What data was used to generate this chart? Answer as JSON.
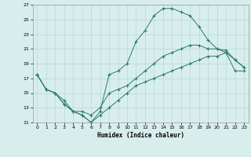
{
  "xlabel": "Humidex (Indice chaleur)",
  "xlim": [
    -0.5,
    23.5
  ],
  "ylim": [
    11,
    27
  ],
  "xticks": [
    0,
    1,
    2,
    3,
    4,
    5,
    6,
    7,
    8,
    9,
    10,
    11,
    12,
    13,
    14,
    15,
    16,
    17,
    18,
    19,
    20,
    21,
    22,
    23
  ],
  "yticks": [
    11,
    13,
    15,
    17,
    19,
    21,
    23,
    25,
    27
  ],
  "line_color": "#2a7a6a",
  "bg_color": "#d8eeed",
  "grid_color": "#b8d8d5",
  "line1_x": [
    0,
    1,
    2,
    3,
    4,
    5,
    6,
    7,
    8,
    9,
    10,
    11,
    12,
    13,
    14,
    15,
    16,
    17,
    18,
    19,
    20,
    21,
    22,
    23
  ],
  "line1_y": [
    17.5,
    15.5,
    15.0,
    14.0,
    12.5,
    12.0,
    11.0,
    12.5,
    17.5,
    18.0,
    19.0,
    22.0,
    23.5,
    25.5,
    26.5,
    26.5,
    26.0,
    25.5,
    24.0,
    22.2,
    21.0,
    20.5,
    19.5,
    18.5
  ],
  "line2_x": [
    0,
    1,
    2,
    3,
    4,
    5,
    6,
    7,
    8,
    9,
    10,
    11,
    12,
    13,
    14,
    15,
    16,
    17,
    18,
    19,
    20,
    21,
    22,
    23
  ],
  "line2_y": [
    17.5,
    15.5,
    15.0,
    13.5,
    12.5,
    12.5,
    12.0,
    13.0,
    15.0,
    15.5,
    16.0,
    17.0,
    18.0,
    19.0,
    20.0,
    20.5,
    21.0,
    21.5,
    21.5,
    21.0,
    21.0,
    20.8,
    19.5,
    18.5
  ],
  "line3_x": [
    0,
    1,
    2,
    3,
    4,
    5,
    6,
    7,
    8,
    9,
    10,
    11,
    12,
    13,
    14,
    15,
    16,
    17,
    18,
    19,
    20,
    21,
    22,
    23
  ],
  "line3_y": [
    17.5,
    15.5,
    15.0,
    13.5,
    12.5,
    12.0,
    11.0,
    12.0,
    13.0,
    14.0,
    15.0,
    16.0,
    16.5,
    17.0,
    17.5,
    18.0,
    18.5,
    19.0,
    19.5,
    20.0,
    20.0,
    20.5,
    18.0,
    18.0
  ]
}
